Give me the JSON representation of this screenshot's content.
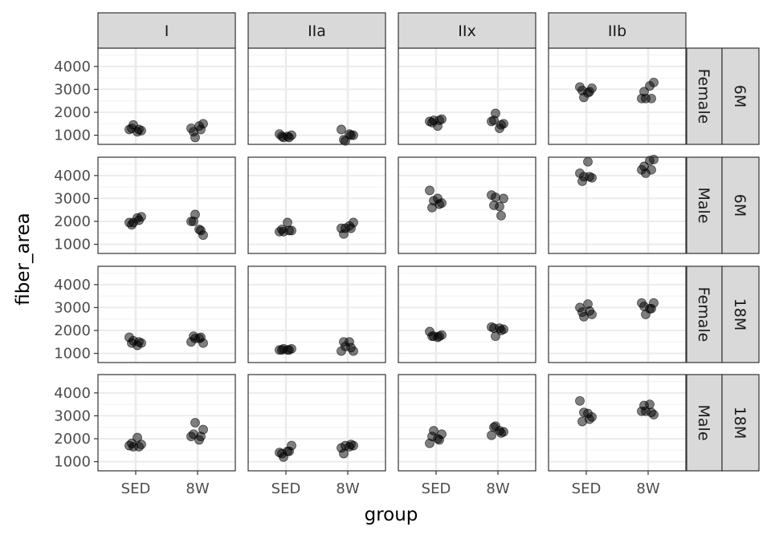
{
  "chart_data": {
    "type": "scatter",
    "facet_cols": [
      "I",
      "IIa",
      "IIx",
      "IIb"
    ],
    "facet_rows": [
      {
        "sex": "Female",
        "age": "6M"
      },
      {
        "sex": "Male",
        "age": "6M"
      },
      {
        "sex": "Female",
        "age": "18M"
      },
      {
        "sex": "Male",
        "age": "18M"
      }
    ],
    "categories": [
      "SED",
      "8W"
    ],
    "xlabel": "group",
    "ylabel": "fiber_area",
    "y_ticks": [
      1000,
      2000,
      3000,
      4000
    ],
    "ylim": [
      600,
      4800
    ],
    "grid": true,
    "point_color": "#000000",
    "point_opacity": 0.5,
    "panels": [
      {
        "row": 0,
        "col": 0,
        "points": [
          [
            "SED",
            1250
          ],
          [
            "SED",
            1450
          ],
          [
            "SED",
            1150
          ],
          [
            "SED",
            1200
          ],
          [
            "SED",
            1300
          ],
          [
            "SED",
            1250
          ],
          [
            "8W",
            1300
          ],
          [
            "8W",
            900
          ],
          [
            "8W",
            1400
          ],
          [
            "8W",
            1500
          ],
          [
            "8W",
            1150
          ],
          [
            "8W",
            1250
          ]
        ]
      },
      {
        "row": 0,
        "col": 1,
        "points": [
          [
            "SED",
            1050
          ],
          [
            "SED",
            900
          ],
          [
            "SED",
            950
          ],
          [
            "SED",
            1000
          ],
          [
            "SED",
            950
          ],
          [
            "SED",
            900
          ],
          [
            "8W",
            1250
          ],
          [
            "8W",
            750
          ],
          [
            "8W",
            1050
          ],
          [
            "8W",
            1000
          ],
          [
            "8W",
            800
          ],
          [
            "8W",
            1000
          ]
        ]
      },
      {
        "row": 0,
        "col": 2,
        "points": [
          [
            "SED",
            1600
          ],
          [
            "SED",
            1650
          ],
          [
            "SED",
            1400
          ],
          [
            "SED",
            1700
          ],
          [
            "SED",
            1550
          ],
          [
            "SED",
            1650
          ],
          [
            "8W",
            1600
          ],
          [
            "8W",
            1950
          ],
          [
            "8W",
            1300
          ],
          [
            "8W",
            1500
          ],
          [
            "8W",
            1650
          ],
          [
            "8W",
            1450
          ]
        ]
      },
      {
        "row": 0,
        "col": 3,
        "points": [
          [
            "SED",
            3100
          ],
          [
            "SED",
            2650
          ],
          [
            "SED",
            2850
          ],
          [
            "SED",
            3050
          ],
          [
            "SED",
            2950
          ],
          [
            "SED",
            2900
          ],
          [
            "8W",
            2600
          ],
          [
            "8W",
            2600
          ],
          [
            "8W",
            3150
          ],
          [
            "8W",
            3300
          ],
          [
            "8W",
            2900
          ],
          [
            "8W",
            2600
          ]
        ]
      },
      {
        "row": 1,
        "col": 0,
        "points": [
          [
            "SED",
            1950
          ],
          [
            "SED",
            1950
          ],
          [
            "SED",
            2150
          ],
          [
            "SED",
            2200
          ],
          [
            "SED",
            1850
          ],
          [
            "SED",
            2050
          ],
          [
            "8W",
            2000
          ],
          [
            "8W",
            2300
          ],
          [
            "8W",
            1650
          ],
          [
            "8W",
            1400
          ],
          [
            "8W",
            2000
          ],
          [
            "8W",
            1600
          ]
        ]
      },
      {
        "row": 1,
        "col": 1,
        "points": [
          [
            "SED",
            1550
          ],
          [
            "SED",
            1550
          ],
          [
            "SED",
            1950
          ],
          [
            "SED",
            1600
          ],
          [
            "SED",
            1650
          ],
          [
            "SED",
            1600
          ],
          [
            "8W",
            1700
          ],
          [
            "8W",
            1700
          ],
          [
            "8W",
            1800
          ],
          [
            "8W",
            1950
          ],
          [
            "8W",
            1450
          ],
          [
            "8W",
            1700
          ]
        ]
      },
      {
        "row": 1,
        "col": 2,
        "points": [
          [
            "SED",
            3350
          ],
          [
            "SED",
            2900
          ],
          [
            "SED",
            3000
          ],
          [
            "SED",
            2800
          ],
          [
            "SED",
            2600
          ],
          [
            "SED",
            2750
          ],
          [
            "8W",
            3150
          ],
          [
            "8W",
            3050
          ],
          [
            "8W",
            2650
          ],
          [
            "8W",
            3000
          ],
          [
            "8W",
            2700
          ],
          [
            "8W",
            2250
          ]
        ]
      },
      {
        "row": 1,
        "col": 3,
        "points": [
          [
            "SED",
            4100
          ],
          [
            "SED",
            3950
          ],
          [
            "SED",
            4600
          ],
          [
            "SED",
            3900
          ],
          [
            "SED",
            3750
          ],
          [
            "SED",
            3950
          ],
          [
            "8W",
            4250
          ],
          [
            "8W",
            4100
          ],
          [
            "8W",
            4650
          ],
          [
            "8W",
            4700
          ],
          [
            "8W",
            4400
          ],
          [
            "8W",
            4250
          ]
        ]
      },
      {
        "row": 2,
        "col": 0,
        "points": [
          [
            "SED",
            1700
          ],
          [
            "SED",
            1550
          ],
          [
            "SED",
            1350
          ],
          [
            "SED",
            1450
          ],
          [
            "SED",
            1450
          ],
          [
            "SED",
            1500
          ],
          [
            "8W",
            1500
          ],
          [
            "8W",
            1650
          ],
          [
            "8W",
            1650
          ],
          [
            "8W",
            1450
          ],
          [
            "8W",
            1750
          ],
          [
            "8W",
            1700
          ]
        ]
      },
      {
        "row": 2,
        "col": 1,
        "points": [
          [
            "SED",
            1150
          ],
          [
            "SED",
            1200
          ],
          [
            "SED",
            1150
          ],
          [
            "SED",
            1200
          ],
          [
            "SED",
            1150
          ],
          [
            "SED",
            1150
          ],
          [
            "8W",
            1100
          ],
          [
            "8W",
            1300
          ],
          [
            "8W",
            1500
          ],
          [
            "8W",
            1100
          ],
          [
            "8W",
            1500
          ],
          [
            "8W",
            1250
          ]
        ]
      },
      {
        "row": 2,
        "col": 2,
        "points": [
          [
            "SED",
            1950
          ],
          [
            "SED",
            1750
          ],
          [
            "SED",
            1700
          ],
          [
            "SED",
            1800
          ],
          [
            "SED",
            1750
          ],
          [
            "SED",
            1750
          ],
          [
            "8W",
            2150
          ],
          [
            "8W",
            1750
          ],
          [
            "8W",
            2100
          ],
          [
            "8W",
            2050
          ],
          [
            "8W",
            2100
          ],
          [
            "8W",
            2000
          ]
        ]
      },
      {
        "row": 2,
        "col": 3,
        "points": [
          [
            "SED",
            3000
          ],
          [
            "SED",
            2600
          ],
          [
            "SED",
            3150
          ],
          [
            "SED",
            2700
          ],
          [
            "SED",
            2800
          ],
          [
            "SED",
            2850
          ],
          [
            "8W",
            3200
          ],
          [
            "8W",
            2700
          ],
          [
            "8W",
            2950
          ],
          [
            "8W",
            3200
          ],
          [
            "8W",
            3050
          ],
          [
            "8W",
            2950
          ]
        ]
      },
      {
        "row": 3,
        "col": 0,
        "points": [
          [
            "SED",
            1700
          ],
          [
            "SED",
            1650
          ],
          [
            "SED",
            2050
          ],
          [
            "SED",
            1750
          ],
          [
            "SED",
            1800
          ],
          [
            "SED",
            1650
          ],
          [
            "8W",
            2100
          ],
          [
            "8W",
            2700
          ],
          [
            "8W",
            1950
          ],
          [
            "8W",
            2400
          ],
          [
            "8W",
            2200
          ],
          [
            "8W",
            2100
          ]
        ]
      },
      {
        "row": 3,
        "col": 1,
        "points": [
          [
            "SED",
            1400
          ],
          [
            "SED",
            1200
          ],
          [
            "SED",
            1450
          ],
          [
            "SED",
            1700
          ],
          [
            "SED",
            1350
          ],
          [
            "SED",
            1450
          ],
          [
            "8W",
            1600
          ],
          [
            "8W",
            1700
          ],
          [
            "8W",
            1650
          ],
          [
            "8W",
            1700
          ],
          [
            "8W",
            1350
          ],
          [
            "8W",
            1750
          ]
        ]
      },
      {
        "row": 3,
        "col": 2,
        "points": [
          [
            "SED",
            1800
          ],
          [
            "SED",
            2350
          ],
          [
            "SED",
            2000
          ],
          [
            "SED",
            2200
          ],
          [
            "SED",
            2100
          ],
          [
            "SED",
            1950
          ],
          [
            "8W",
            2150
          ],
          [
            "8W",
            2550
          ],
          [
            "8W",
            2350
          ],
          [
            "8W",
            2300
          ],
          [
            "8W",
            2500
          ],
          [
            "8W",
            2250
          ]
        ]
      },
      {
        "row": 3,
        "col": 3,
        "points": [
          [
            "SED",
            3650
          ],
          [
            "SED",
            3150
          ],
          [
            "SED",
            3100
          ],
          [
            "SED",
            2950
          ],
          [
            "SED",
            2750
          ],
          [
            "SED",
            2850
          ],
          [
            "8W",
            3200
          ],
          [
            "8W",
            3200
          ],
          [
            "8W",
            3500
          ],
          [
            "8W",
            3050
          ],
          [
            "8W",
            3450
          ],
          [
            "8W",
            3150
          ]
        ]
      }
    ]
  }
}
